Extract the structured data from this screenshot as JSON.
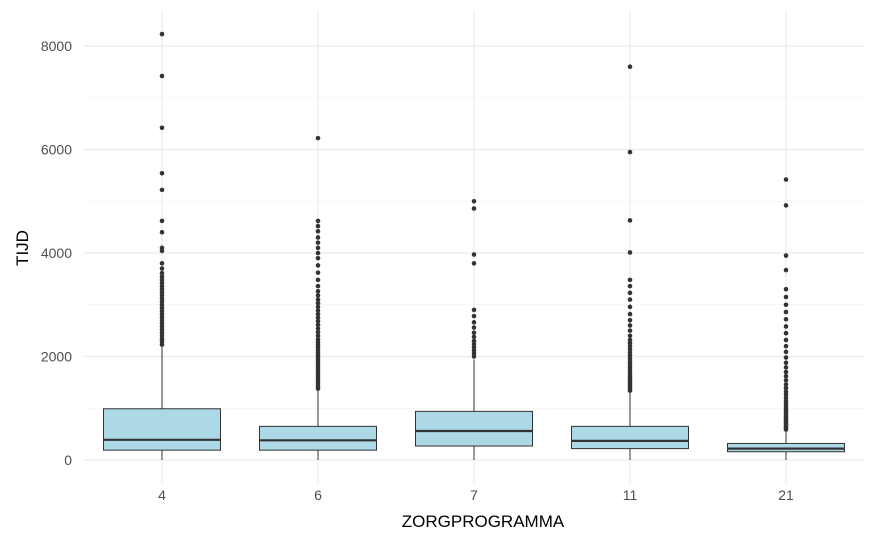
{
  "chart_data": {
    "type": "boxplot",
    "xlabel": "ZORGPROGRAMMA",
    "ylabel": "TIJD",
    "ylim": [
      -400,
      8480
    ],
    "y_ticks": [
      0,
      2000,
      4000,
      6000,
      8000
    ],
    "y_tick_labels": [
      "0",
      "2000",
      "4000",
      "6000",
      "8000"
    ],
    "categories": [
      "4",
      "6",
      "7",
      "11",
      "21"
    ],
    "grid": true,
    "legend": "none",
    "colors": {
      "box_fill": "#add8e6",
      "box_stroke": "#333333",
      "median": "#333333",
      "grid": "#ebebeb",
      "outlier": "#333333"
    },
    "boxes": [
      {
        "category": "4",
        "whisker_low": 0,
        "q1": 190,
        "median": 390,
        "q3": 990,
        "whisker_high": 2180,
        "outliers": [
          2230,
          2290,
          2340,
          2400,
          2460,
          2520,
          2580,
          2640,
          2700,
          2760,
          2820,
          2880,
          2940,
          3000,
          3060,
          3120,
          3180,
          3240,
          3300,
          3360,
          3420,
          3480,
          3540,
          3610,
          3700,
          3800,
          4040,
          4100,
          4400,
          4620,
          5220,
          5540,
          6420,
          7420,
          8230
        ]
      },
      {
        "category": "6",
        "whisker_low": 0,
        "q1": 190,
        "median": 380,
        "q3": 650,
        "whisker_high": 1340,
        "outliers": [
          1380,
          1430,
          1480,
          1530,
          1580,
          1630,
          1680,
          1730,
          1780,
          1830,
          1880,
          1930,
          1980,
          2030,
          2080,
          2130,
          2180,
          2230,
          2280,
          2330,
          2400,
          2470,
          2540,
          2610,
          2680,
          2750,
          2820,
          2890,
          2960,
          3030,
          3100,
          3180,
          3260,
          3360,
          3480,
          3620,
          3760,
          3900,
          4000,
          4100,
          4200,
          4300,
          4420,
          4520,
          4620,
          6220
        ]
      },
      {
        "category": "7",
        "whisker_low": 0,
        "q1": 270,
        "median": 560,
        "q3": 940,
        "whisker_high": 1940,
        "outliers": [
          2000,
          2060,
          2120,
          2180,
          2240,
          2300,
          2380,
          2460,
          2560,
          2660,
          2780,
          2900,
          3800,
          3970,
          4860,
          5000
        ]
      },
      {
        "category": "11",
        "whisker_low": 0,
        "q1": 220,
        "median": 370,
        "q3": 650,
        "whisker_high": 1300,
        "outliers": [
          1340,
          1380,
          1420,
          1460,
          1500,
          1540,
          1580,
          1620,
          1660,
          1700,
          1750,
          1800,
          1850,
          1900,
          1960,
          2020,
          2080,
          2140,
          2200,
          2260,
          2320,
          2400,
          2500,
          2600,
          2700,
          2820,
          2960,
          3100,
          3230,
          3360,
          3480,
          4010,
          4630,
          5950,
          7600
        ]
      },
      {
        "category": "21",
        "whisker_low": 0,
        "q1": 160,
        "median": 220,
        "q3": 320,
        "whisker_high": 560,
        "outliers": [
          590,
          620,
          650,
          680,
          710,
          740,
          770,
          800,
          840,
          880,
          920,
          960,
          1000,
          1040,
          1090,
          1140,
          1200,
          1260,
          1320,
          1390,
          1460,
          1540,
          1620,
          1700,
          1790,
          1880,
          1980,
          2090,
          2200,
          2320,
          2450,
          2580,
          2720,
          2860,
          3000,
          3150,
          3300,
          3670,
          3950,
          4920,
          5420
        ]
      }
    ]
  }
}
